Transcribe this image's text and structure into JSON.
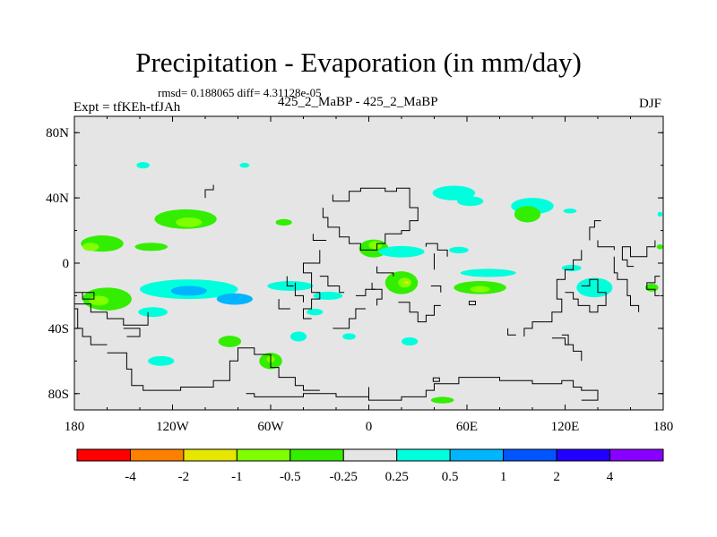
{
  "chart_data": {
    "type": "heatmap",
    "title": "Precipitation - Evaporation (in mm/day)",
    "subtitle_stats": "rmsd= 0.188065 diff= 4.31128e-05",
    "left_label": "Expt = tfKEh-tfJAh",
    "center_label": "425_2_MaBP - 425_2_MaBP",
    "right_label": "DJF",
    "x_ticks": [
      "180",
      "120W",
      "60W",
      "0",
      "60E",
      "120E",
      "180"
    ],
    "x_tick_values": [
      -180,
      -120,
      -60,
      0,
      60,
      120,
      180
    ],
    "y_ticks": [
      "80N",
      "40N",
      "0",
      "40S",
      "80S"
    ],
    "y_tick_values": [
      80,
      40,
      0,
      -40,
      -80
    ],
    "xlim": [
      -180,
      180
    ],
    "ylim": [
      -90,
      90
    ],
    "colorbar": {
      "labels": [
        "-4",
        "-2",
        "-1",
        "-0.5",
        "-0.25",
        "0.25",
        "0.5",
        "1",
        "2",
        "4"
      ],
      "colors": [
        "#ff0000",
        "#ff8000",
        "#e6e600",
        "#80ff00",
        "#33ee00",
        "#e5e5e5",
        "#00ffdd",
        "#00b4ff",
        "#0055ff",
        "#2200ff",
        "#8800ff"
      ]
    },
    "background_color": "#e5e5e5",
    "anomaly_regions": [
      {
        "lon": 52,
        "lat": 43,
        "w": 26,
        "h": 9,
        "level": "0.25"
      },
      {
        "lon": 62,
        "lat": 38,
        "w": 16,
        "h": 6,
        "level": "0.25"
      },
      {
        "lon": 100,
        "lat": 35,
        "w": 26,
        "h": 10,
        "level": "0.25"
      },
      {
        "lon": 97,
        "lat": 30,
        "w": 16,
        "h": 10,
        "level": "-0.25"
      },
      {
        "lon": -112,
        "lat": 27,
        "w": 38,
        "h": 12,
        "level": "-0.25"
      },
      {
        "lon": -110,
        "lat": 25,
        "w": 16,
        "h": 6,
        "level": "-0.5"
      },
      {
        "lon": -163,
        "lat": 12,
        "w": 26,
        "h": 10,
        "level": "-0.25"
      },
      {
        "lon": -170,
        "lat": 10,
        "w": 10,
        "h": 5,
        "level": "-0.5"
      },
      {
        "lon": -133,
        "lat": 10,
        "w": 20,
        "h": 5,
        "level": "-0.25"
      },
      {
        "lon": -160,
        "lat": -22,
        "w": 30,
        "h": 14,
        "level": "-0.25"
      },
      {
        "lon": -165,
        "lat": -23,
        "w": 12,
        "h": 6,
        "level": "-0.5"
      },
      {
        "lon": -110,
        "lat": -16,
        "w": 60,
        "h": 12,
        "level": "0.25"
      },
      {
        "lon": -110,
        "lat": -17,
        "w": 22,
        "h": 6,
        "level": "0.5"
      },
      {
        "lon": -82,
        "lat": -22,
        "w": 22,
        "h": 7,
        "level": "0.5"
      },
      {
        "lon": -132,
        "lat": -30,
        "w": 18,
        "h": 6,
        "level": "0.25"
      },
      {
        "lon": 3,
        "lat": 9,
        "w": 18,
        "h": 11,
        "level": "-0.25"
      },
      {
        "lon": 4,
        "lat": 11,
        "w": 8,
        "h": 5,
        "level": "-0.5"
      },
      {
        "lon": 20,
        "lat": 7,
        "w": 28,
        "h": 7,
        "level": "0.25"
      },
      {
        "lon": 20,
        "lat": -12,
        "w": 20,
        "h": 14,
        "level": "-0.25"
      },
      {
        "lon": 22,
        "lat": -12,
        "w": 8,
        "h": 6,
        "level": "-0.5"
      },
      {
        "lon": 23,
        "lat": -12,
        "w": 3,
        "h": 2,
        "level": "-1"
      },
      {
        "lon": 68,
        "lat": -15,
        "w": 32,
        "h": 8,
        "level": "-0.25"
      },
      {
        "lon": 68,
        "lat": -16,
        "w": 12,
        "h": 4,
        "level": "-0.5"
      },
      {
        "lon": 73,
        "lat": -6,
        "w": 34,
        "h": 5,
        "level": "0.25"
      },
      {
        "lon": 138,
        "lat": -15,
        "w": 22,
        "h": 12,
        "level": "0.25"
      },
      {
        "lon": 173,
        "lat": -15,
        "w": 8,
        "h": 5,
        "level": "-0.25"
      },
      {
        "lon": -48,
        "lat": -14,
        "w": 28,
        "h": 6,
        "level": "0.25"
      },
      {
        "lon": -25,
        "lat": -20,
        "w": 18,
        "h": 5,
        "level": "0.25"
      },
      {
        "lon": -85,
        "lat": -48,
        "w": 14,
        "h": 7,
        "level": "-0.25"
      },
      {
        "lon": -127,
        "lat": -60,
        "w": 16,
        "h": 6,
        "level": "0.25"
      },
      {
        "lon": -60,
        "lat": -60,
        "w": 14,
        "h": 10,
        "level": "-0.25"
      },
      {
        "lon": -60,
        "lat": -59,
        "w": 5,
        "h": 4,
        "level": "-0.5"
      },
      {
        "lon": -43,
        "lat": -45,
        "w": 10,
        "h": 6,
        "level": "0.25"
      },
      {
        "lon": -12,
        "lat": -45,
        "w": 8,
        "h": 4,
        "level": "0.25"
      },
      {
        "lon": 25,
        "lat": -48,
        "w": 10,
        "h": 5,
        "level": "0.25"
      },
      {
        "lon": -138,
        "lat": 60,
        "w": 8,
        "h": 4,
        "level": "0.25"
      },
      {
        "lon": -76,
        "lat": 60,
        "w": 6,
        "h": 3,
        "level": "0.25"
      },
      {
        "lon": -52,
        "lat": 25,
        "w": 10,
        "h": 4,
        "level": "-0.25"
      },
      {
        "lon": 123,
        "lat": 32,
        "w": 8,
        "h": 3,
        "level": "0.25"
      },
      {
        "lon": 55,
        "lat": 8,
        "w": 12,
        "h": 4,
        "level": "0.25"
      },
      {
        "lon": 124,
        "lat": -3,
        "w": 12,
        "h": 4,
        "level": "0.25"
      },
      {
        "lon": -33,
        "lat": -30,
        "w": 10,
        "h": 4,
        "level": "0.25"
      },
      {
        "lon": 45,
        "lat": -84,
        "w": 14,
        "h": 4,
        "level": "-0.25"
      },
      {
        "lon": 178,
        "lat": 10,
        "w": 4,
        "h": 3,
        "level": "-0.25"
      },
      {
        "lon": 178,
        "lat": 30,
        "w": 3,
        "h": 3,
        "level": "0.25"
      }
    ]
  }
}
